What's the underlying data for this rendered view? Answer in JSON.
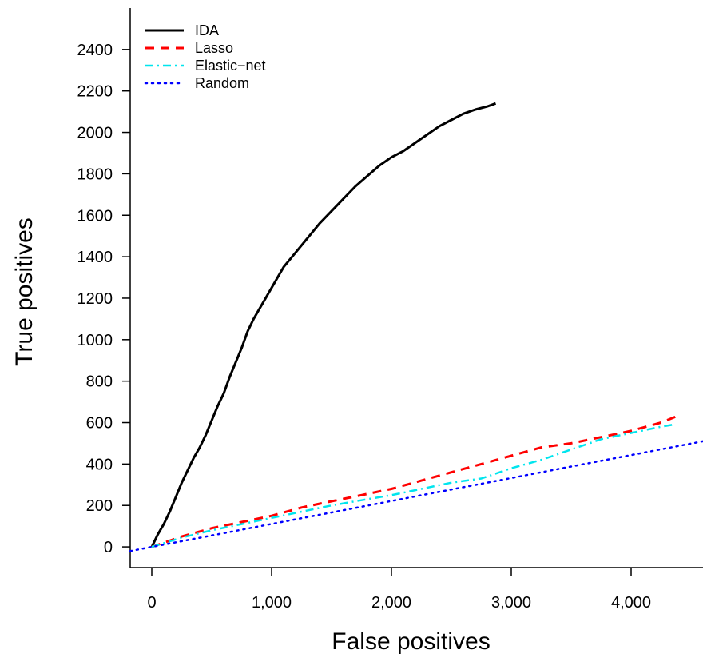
{
  "chart_data": {
    "type": "line",
    "xlabel": "False positives",
    "ylabel": "True positives",
    "xlim": [
      -180,
      4600
    ],
    "ylim": [
      -100,
      2600
    ],
    "x_ticks": [
      0,
      1000,
      2000,
      3000,
      4000
    ],
    "x_tick_labels": [
      "0",
      "1,000",
      "2,000",
      "3,000",
      "4,000"
    ],
    "y_ticks": [
      0,
      200,
      400,
      600,
      800,
      1000,
      1200,
      1400,
      1600,
      1800,
      2000,
      2200,
      2400
    ],
    "y_tick_labels": [
      "0",
      "200",
      "400",
      "600",
      "800",
      "1000",
      "1200",
      "1400",
      "1600",
      "1800",
      "2000",
      "2200",
      "2400"
    ],
    "grid": false,
    "legend_position": "top-left",
    "series": [
      {
        "name": "IDA",
        "color": "#000000",
        "dash": "solid",
        "x": [
          0,
          50,
          100,
          150,
          200,
          250,
          300,
          350,
          400,
          450,
          500,
          550,
          600,
          650,
          700,
          750,
          800,
          850,
          900,
          950,
          1000,
          1050,
          1100,
          1200,
          1300,
          1400,
          1500,
          1600,
          1700,
          1800,
          1900,
          2000,
          2100,
          2200,
          2300,
          2400,
          2500,
          2600,
          2700,
          2800,
          2870
        ],
        "y": [
          0,
          60,
          110,
          170,
          240,
          310,
          370,
          430,
          480,
          540,
          610,
          680,
          740,
          820,
          890,
          960,
          1040,
          1100,
          1150,
          1200,
          1250,
          1300,
          1350,
          1420,
          1490,
          1560,
          1620,
          1680,
          1740,
          1790,
          1840,
          1880,
          1910,
          1950,
          1990,
          2030,
          2060,
          2090,
          2110,
          2125,
          2140
        ]
      },
      {
        "name": "Lasso",
        "color": "#ff0000",
        "dash": "dashed",
        "x": [
          0,
          250,
          500,
          750,
          1000,
          1250,
          1500,
          1750,
          2000,
          2250,
          2500,
          2750,
          3000,
          3250,
          3500,
          3750,
          4000,
          4250,
          4380
        ],
        "y": [
          0,
          50,
          90,
          120,
          150,
          190,
          220,
          250,
          280,
          320,
          360,
          400,
          440,
          480,
          500,
          530,
          560,
          600,
          630
        ]
      },
      {
        "name": "Elastic−net",
        "color": "#00e5ee",
        "dash": "dashdot",
        "x": [
          0,
          250,
          500,
          750,
          1000,
          1250,
          1500,
          1750,
          2000,
          2250,
          2500,
          2750,
          3000,
          3250,
          3500,
          3750,
          4000,
          4250,
          4350
        ],
        "y": [
          0,
          45,
          80,
          110,
          140,
          170,
          200,
          225,
          250,
          280,
          310,
          330,
          380,
          420,
          470,
          520,
          550,
          580,
          590
        ]
      },
      {
        "name": "Random",
        "color": "#0000ff",
        "dash": "dotted",
        "x": [
          -180,
          4600
        ],
        "y": [
          -20,
          510
        ]
      }
    ]
  }
}
